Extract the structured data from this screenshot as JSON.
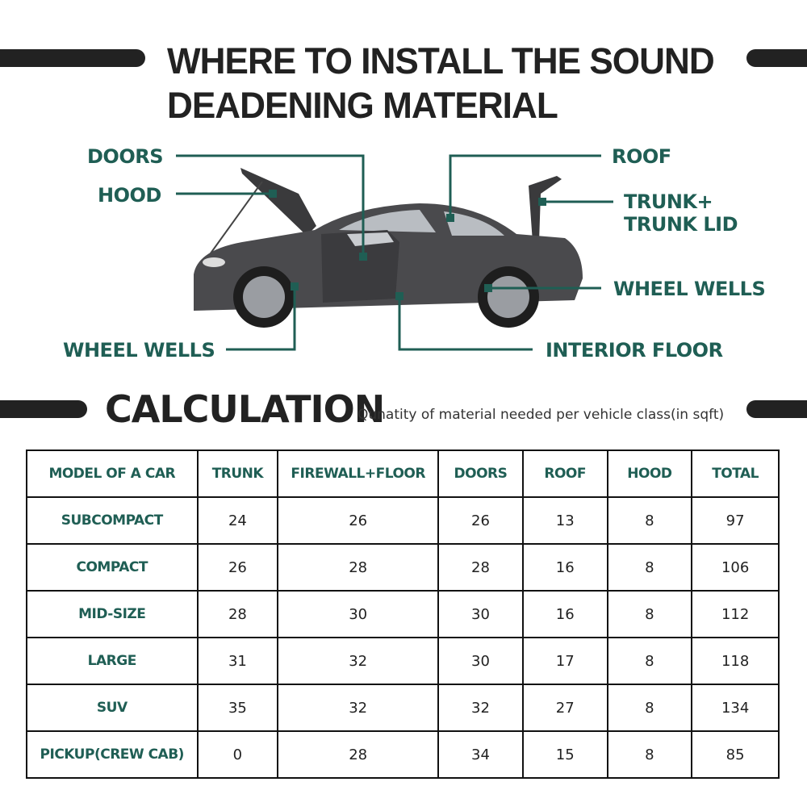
{
  "title_line1": "WHERE TO INSTALL THE SOUND",
  "title_line2": "DEADENING MATERIAL",
  "labels": {
    "doors": "DOORS",
    "hood": "HOOD",
    "roof": "ROOF",
    "trunk_line1": "TRUNK+",
    "trunk_line2": "TRUNK LID",
    "wheel_wells_right": "WHEEL WELLS",
    "wheel_wells_left": "WHEEL WELLS",
    "interior_floor": "INTERIOR FLOOR"
  },
  "calculation": {
    "heading": "CALCULATION",
    "subtitle": "Qunatity of material needed per vehicle class(in sqft)"
  },
  "colors": {
    "accent": "#1f5e54",
    "dark": "#222222"
  },
  "table": {
    "headers": [
      "MODEL OF A CAR",
      "TRUNK",
      "FIREWALL+FLOOR",
      "DOORS",
      "ROOF",
      "HOOD",
      "TOTAL"
    ],
    "rows": [
      [
        "SUBCOMPACT",
        "24",
        "26",
        "26",
        "13",
        "8",
        "97"
      ],
      [
        "COMPACT",
        "26",
        "28",
        "28",
        "16",
        "8",
        "106"
      ],
      [
        "MID-SIZE",
        "28",
        "30",
        "30",
        "16",
        "8",
        "112"
      ],
      [
        "LARGE",
        "31",
        "32",
        "30",
        "17",
        "8",
        "118"
      ],
      [
        "SUV",
        "35",
        "32",
        "32",
        "27",
        "8",
        "134"
      ],
      [
        "PICKUP(CREW CAB)",
        "0",
        "28",
        "34",
        "15",
        "8",
        "85"
      ]
    ]
  }
}
